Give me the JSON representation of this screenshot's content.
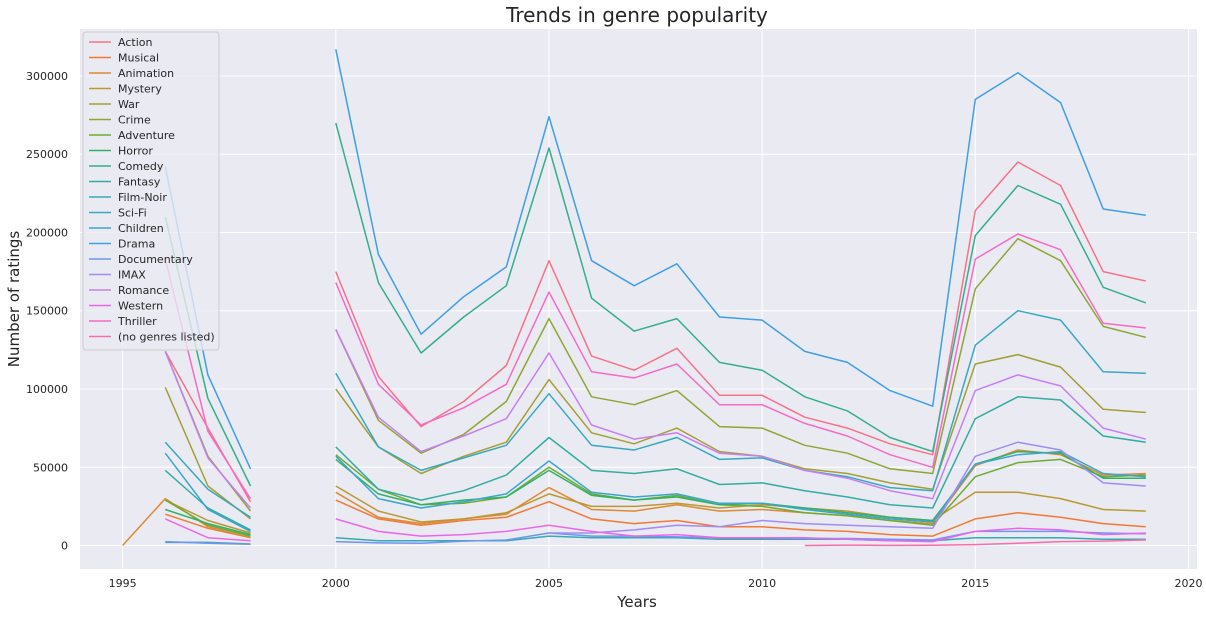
{
  "chart_data": {
    "type": "line",
    "title": "Trends in genre popularity",
    "xlabel": "Years",
    "ylabel": "Number of ratings",
    "xlim": [
      1994,
      2020.2
    ],
    "ylim": [
      -15000,
      330000
    ],
    "x_ticks": [
      1995,
      2000,
      2005,
      2010,
      2015,
      2020
    ],
    "y_ticks": [
      0,
      50000,
      100000,
      150000,
      200000,
      250000,
      300000
    ],
    "grid": true,
    "legend_position": "top-left",
    "x": [
      1995,
      1996,
      1997,
      1998,
      1999,
      2000,
      2001,
      2002,
      2003,
      2004,
      2005,
      2006,
      2007,
      2008,
      2009,
      2010,
      2011,
      2012,
      2013,
      2014,
      2015,
      2016,
      2017,
      2018,
      2019
    ],
    "series": [
      {
        "name": "Action",
        "color": "#f77189",
        "values": [
          null,
          124000,
          75000,
          28000,
          null,
          175000,
          108000,
          76000,
          92000,
          115000,
          182000,
          121000,
          112000,
          126000,
          96000,
          96000,
          82000,
          75000,
          65000,
          58000,
          214000,
          245000,
          230000,
          175000,
          169000
        ]
      },
      {
        "name": "Musical",
        "color": "#f37932",
        "values": [
          null,
          20000,
          11000,
          5000,
          null,
          29000,
          17000,
          13000,
          16000,
          18000,
          28000,
          17000,
          14000,
          16000,
          12000,
          12000,
          10000,
          9000,
          7000,
          6000,
          17000,
          21000,
          18000,
          14000,
          12000
        ]
      },
      {
        "name": "Animation",
        "color": "#dd8a32",
        "values": [
          0,
          30000,
          12000,
          5000,
          null,
          34000,
          18000,
          14000,
          17000,
          20000,
          37000,
          23000,
          22000,
          26000,
          22000,
          23000,
          21000,
          19000,
          16000,
          14000,
          51000,
          61000,
          58000,
          45000,
          46000
        ]
      },
      {
        "name": "Mystery",
        "color": "#bb9832",
        "values": [
          null,
          29000,
          16000,
          8000,
          null,
          38000,
          22000,
          15000,
          17000,
          21000,
          33000,
          25000,
          25000,
          27000,
          24000,
          26000,
          24000,
          22000,
          18000,
          16000,
          34000,
          34000,
          30000,
          23000,
          22000
        ]
      },
      {
        "name": "War",
        "color": "#a39f33",
        "values": [
          null,
          101000,
          38000,
          17000,
          null,
          100000,
          63000,
          46000,
          57000,
          66000,
          106000,
          72000,
          65000,
          75000,
          60000,
          57000,
          49000,
          46000,
          40000,
          36000,
          116000,
          122000,
          114000,
          87000,
          85000
        ]
      },
      {
        "name": "Crime",
        "color": "#8ea633",
        "values": [
          null,
          124000,
          57000,
          22000,
          null,
          138000,
          80000,
          59000,
          71000,
          92000,
          145000,
          95000,
          90000,
          99000,
          76000,
          75000,
          64000,
          59000,
          49000,
          46000,
          164000,
          196000,
          182000,
          140000,
          133000
        ]
      },
      {
        "name": "Adventure",
        "color": "#6fab32",
        "values": [
          null,
          29000,
          13000,
          6000,
          null,
          58000,
          36000,
          26000,
          27000,
          31000,
          50000,
          33000,
          29000,
          32000,
          26000,
          25000,
          21000,
          19000,
          16000,
          13000,
          44000,
          53000,
          55000,
          44000,
          45000
        ]
      },
      {
        "name": "Horror",
        "color": "#32b164",
        "values": [
          null,
          23000,
          14000,
          7000,
          null,
          55000,
          33000,
          26000,
          29000,
          31000,
          48000,
          32000,
          29000,
          31000,
          26000,
          27000,
          24000,
          21000,
          18000,
          16000,
          52000,
          60000,
          59000,
          43000,
          43000
        ]
      },
      {
        "name": "Comedy",
        "color": "#34ae8d",
        "values": [
          null,
          210000,
          94000,
          38000,
          null,
          270000,
          168000,
          123000,
          146000,
          166000,
          254000,
          158000,
          137000,
          145000,
          117000,
          112000,
          95000,
          86000,
          69000,
          60000,
          198000,
          230000,
          218000,
          165000,
          155000
        ]
      },
      {
        "name": "Fantasy",
        "color": "#35aca1",
        "values": [
          null,
          48000,
          24000,
          10000,
          null,
          63000,
          36000,
          29000,
          35000,
          45000,
          69000,
          48000,
          46000,
          49000,
          39000,
          40000,
          35000,
          31000,
          26000,
          24000,
          81000,
          95000,
          93000,
          70000,
          66000
        ]
      },
      {
        "name": "Film-Noir",
        "color": "#36aab0",
        "values": [
          null,
          2000,
          2000,
          1000,
          null,
          5000,
          3000,
          3000,
          3000,
          3000,
          6000,
          5000,
          5000,
          5000,
          4000,
          4000,
          4000,
          4000,
          3000,
          3000,
          5000,
          5000,
          5000,
          4000,
          4000
        ]
      },
      {
        "name": "Sci-Fi",
        "color": "#38a8be",
        "values": [
          null,
          66000,
          36000,
          18000,
          null,
          110000,
          63000,
          48000,
          56000,
          64000,
          97000,
          64000,
          61000,
          69000,
          55000,
          56000,
          48000,
          44000,
          37000,
          35000,
          128000,
          150000,
          144000,
          111000,
          110000
        ]
      },
      {
        "name": "Children",
        "color": "#3aa5cf",
        "values": [
          null,
          59000,
          23000,
          9000,
          null,
          57000,
          30000,
          24000,
          28000,
          33000,
          54000,
          34000,
          31000,
          33000,
          27000,
          27000,
          23000,
          20000,
          17000,
          15000,
          52000,
          58000,
          60000,
          46000,
          44000
        ]
      },
      {
        "name": "Drama",
        "color": "#3d9fe4",
        "values": [
          null,
          242000,
          109000,
          49000,
          null,
          317000,
          186000,
          135000,
          159000,
          178000,
          274000,
          182000,
          166000,
          180000,
          146000,
          144000,
          124000,
          117000,
          99000,
          89000,
          285000,
          302000,
          283000,
          215000,
          211000
        ]
      },
      {
        "name": "Documentary",
        "color": "#7094f4",
        "values": [
          null,
          2500,
          1500,
          800,
          null,
          2500,
          1700,
          1400,
          2800,
          3500,
          8000,
          6000,
          6000,
          5500,
          5000,
          5000,
          4500,
          4500,
          4000,
          3500,
          9000,
          9000,
          9000,
          8000,
          7500
        ]
      },
      {
        "name": "IMAX",
        "color": "#a28cf4",
        "values": [
          null,
          null,
          null,
          null,
          null,
          null,
          null,
          null,
          null,
          null,
          8000,
          8000,
          10000,
          13000,
          12000,
          16000,
          14000,
          13000,
          12000,
          11000,
          57000,
          66000,
          61000,
          40000,
          38000
        ]
      },
      {
        "name": "Romance",
        "color": "#c77ef3",
        "values": [
          null,
          124000,
          56000,
          24000,
          null,
          138000,
          82000,
          60000,
          70000,
          81000,
          123000,
          77000,
          68000,
          72000,
          59000,
          57000,
          48000,
          43000,
          35000,
          30000,
          99000,
          109000,
          102000,
          75000,
          68000
        ]
      },
      {
        "name": "Western",
        "color": "#ec67e8",
        "values": [
          null,
          17000,
          5000,
          3000,
          null,
          17000,
          9000,
          6000,
          7000,
          9000,
          13000,
          9000,
          6000,
          7000,
          5000,
          5000,
          5000,
          4000,
          3000,
          2500,
          9000,
          11000,
          10000,
          7000,
          8000
        ]
      },
      {
        "name": "Thriller",
        "color": "#f56bc6",
        "values": [
          null,
          183000,
          73000,
          30000,
          null,
          168000,
          103000,
          77000,
          88000,
          103000,
          162000,
          111000,
          107000,
          116000,
          90000,
          90000,
          78000,
          70000,
          58000,
          50000,
          183000,
          199000,
          189000,
          142000,
          139000
        ]
      },
      {
        "name": "(no genres listed)",
        "color": "#f66fa9",
        "values": [
          null,
          null,
          null,
          null,
          null,
          null,
          null,
          null,
          null,
          null,
          null,
          null,
          null,
          null,
          null,
          null,
          0,
          300,
          100,
          200,
          600,
          1500,
          2500,
          2800,
          3500
        ]
      }
    ]
  }
}
